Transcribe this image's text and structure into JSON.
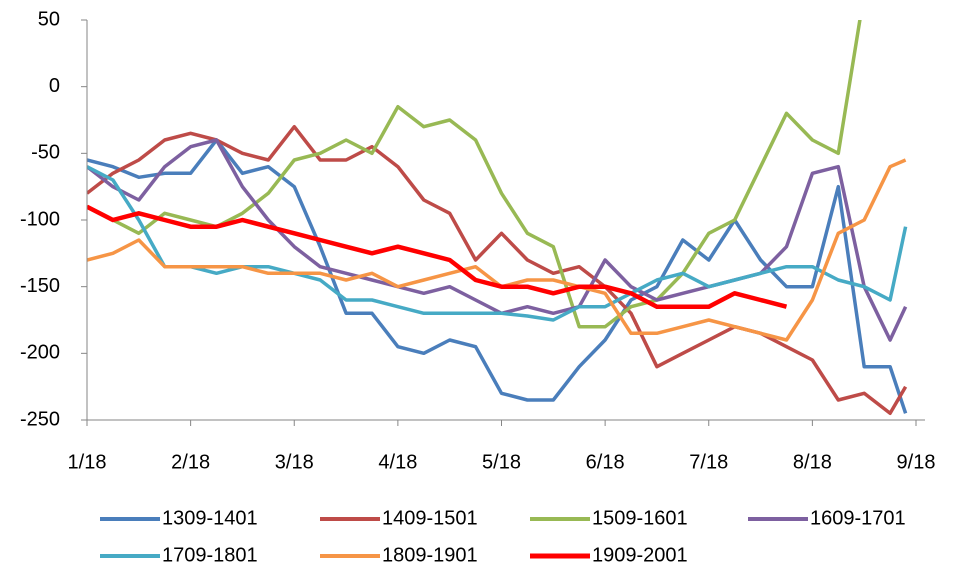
{
  "chart_data": {
    "type": "line",
    "x": [
      0,
      0.25,
      0.5,
      0.75,
      1,
      1.25,
      1.5,
      1.75,
      2,
      2.25,
      2.5,
      2.75,
      3,
      3.25,
      3.5,
      3.75,
      4,
      4.25,
      4.5,
      4.75,
      5,
      5.25,
      5.5,
      5.75,
      6,
      6.25,
      6.5,
      6.75,
      7,
      7.25,
      7.5,
      7.75,
      7.9
    ],
    "xlim": [
      0,
      8
    ],
    "xticks": [
      {
        "value": 0,
        "label": "1/18"
      },
      {
        "value": 1,
        "label": "2/18"
      },
      {
        "value": 2,
        "label": "3/18"
      },
      {
        "value": 3,
        "label": "4/18"
      },
      {
        "value": 4,
        "label": "5/18"
      },
      {
        "value": 5,
        "label": "6/18"
      },
      {
        "value": 6,
        "label": "7/18"
      },
      {
        "value": 7,
        "label": "8/18"
      },
      {
        "value": 8,
        "label": "9/18"
      }
    ],
    "ylim": [
      -250,
      50
    ],
    "yticks": [
      -250,
      -200,
      -150,
      -100,
      -50,
      0,
      50
    ],
    "series": [
      {
        "name": "1309-1401",
        "color": "#4a7ebb",
        "values": [
          -55,
          -60,
          -68,
          -65,
          -65,
          -40,
          -65,
          -60,
          -75,
          -120,
          -170,
          -170,
          -195,
          -200,
          -190,
          -195,
          -230,
          -235,
          -235,
          -210,
          -190,
          -160,
          -150,
          -115,
          -130,
          -100,
          -130,
          -150,
          -150,
          -75,
          -210,
          -210,
          -245
        ]
      },
      {
        "name": "1409-1501",
        "color": "#be4b48",
        "values": [
          -80,
          -65,
          -55,
          -40,
          -35,
          -40,
          -50,
          -55,
          -30,
          -55,
          -55,
          -45,
          -60,
          -85,
          -95,
          -130,
          -110,
          -130,
          -140,
          -135,
          -150,
          -170,
          -210,
          -200,
          -190,
          -180,
          -185,
          -195,
          -205,
          -235,
          -230,
          -245,
          -225
        ]
      },
      {
        "name": "1509-1601",
        "color": "#98b954",
        "values": [
          -90,
          -100,
          -110,
          -95,
          -100,
          -105,
          -95,
          -80,
          -55,
          -50,
          -40,
          -50,
          -15,
          -30,
          -25,
          -40,
          -80,
          -110,
          -120,
          -180,
          -180,
          -165,
          -160,
          -140,
          -110,
          -100,
          -60,
          -20,
          -40,
          -50,
          70,
          null,
          null
        ]
      },
      {
        "name": "1609-1701",
        "color": "#7d60a0",
        "values": [
          -60,
          -75,
          -85,
          -60,
          -45,
          -40,
          -75,
          -100,
          -120,
          -135,
          -140,
          -145,
          -150,
          -155,
          -150,
          -160,
          -170,
          -165,
          -170,
          -165,
          -130,
          -150,
          -160,
          -155,
          -150,
          -145,
          -140,
          -120,
          -65,
          -60,
          -150,
          -190,
          -165
        ]
      },
      {
        "name": "1709-1801",
        "color": "#46aac5",
        "values": [
          -60,
          -70,
          -100,
          -135,
          -135,
          -140,
          -135,
          -135,
          -140,
          -145,
          -160,
          -160,
          -165,
          -170,
          -170,
          -170,
          -170,
          -172,
          -175,
          -165,
          -165,
          -155,
          -145,
          -140,
          -150,
          -145,
          -140,
          -135,
          -135,
          -145,
          -150,
          -160,
          -105
        ]
      },
      {
        "name": "1809-1901",
        "color": "#f69546",
        "values": [
          -130,
          -125,
          -115,
          -135,
          -135,
          -135,
          -135,
          -140,
          -140,
          -140,
          -145,
          -140,
          -150,
          -145,
          -140,
          -135,
          -150,
          -145,
          -145,
          -150,
          -155,
          -185,
          -185,
          -180,
          -175,
          -180,
          -185,
          -190,
          -160,
          -110,
          -100,
          -60,
          -55
        ]
      },
      {
        "name": "1909-2001",
        "color": "#ff0000",
        "values": [
          -90,
          -100,
          -95,
          -100,
          -105,
          -105,
          -100,
          -105,
          -110,
          -115,
          -120,
          -125,
          -120,
          -125,
          -130,
          -145,
          -150,
          -150,
          -155,
          -150,
          -150,
          -155,
          -165,
          -165,
          -165,
          -155,
          -160,
          -165,
          null,
          null,
          null,
          null,
          null
        ]
      }
    ]
  }
}
